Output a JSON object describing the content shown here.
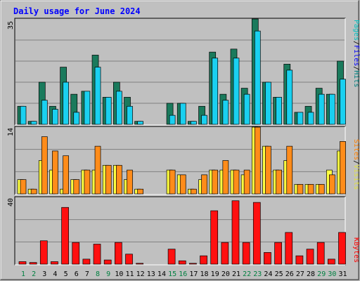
{
  "title": "Daily usage for June 2024",
  "colors": {
    "hits": "#1a7a5c",
    "files": "#1ad0f0",
    "sites": "#ffff40",
    "visits": "#ff8c1a",
    "kbytes": "#ff1010",
    "weekday_label": "#000000",
    "weekend_label": "#008040",
    "hits_label": "#008080",
    "files_label": "#0000ff",
    "pages_label": "#00c0c0",
    "visits_label": "#e0e040",
    "sites_label": "#ff8000",
    "kbytes_label": "#ff0000"
  },
  "right_labels": {
    "top": [
      "Pages",
      "Files",
      "Hits"
    ],
    "top_separator": "/",
    "middle": [
      "Sites",
      "Visits"
    ],
    "middle_separator": "/",
    "bottom": "KBytes"
  },
  "chart_data": {
    "type": "bar",
    "days": [
      "1",
      "2",
      "3",
      "4",
      "5",
      "6",
      "7",
      "8",
      "9",
      "10",
      "11",
      "12",
      "13",
      "14",
      "15",
      "16",
      "17",
      "18",
      "19",
      "20",
      "21",
      "22",
      "23",
      "24",
      "25",
      "26",
      "27",
      "28",
      "29",
      "30",
      "31"
    ],
    "weekend_days": [
      1,
      2,
      8,
      9,
      15,
      16,
      22,
      23,
      29,
      30
    ],
    "panels": [
      {
        "name": "hits-files-pages",
        "ymax_label": "35",
        "ylim": [
          0,
          35
        ],
        "series": [
          {
            "name": "Hits",
            "values": [
              6,
              1,
              14,
              6,
              19,
              10,
              11,
              23,
              9,
              14,
              9,
              1,
              0,
              0,
              7,
              7,
              1,
              6,
              24,
              10,
              25,
              12,
              35,
              14,
              9,
              20,
              4,
              6,
              12,
              10,
              21
            ]
          },
          {
            "name": "Files",
            "values": [
              6,
              1,
              8,
              5,
              14,
              4,
              11,
              19,
              9,
              11,
              6,
              1,
              0,
              0,
              3,
              7,
              1,
              3,
              22,
              8,
              22,
              10,
              31,
              14,
              9,
              18,
              4,
              4,
              10,
              10,
              15
            ]
          },
          {
            "name": "Pages",
            "values": [
              6,
              1,
              8,
              5,
              14,
              4,
              11,
              19,
              9,
              11,
              6,
              1,
              0,
              0,
              3,
              7,
              1,
              3,
              22,
              8,
              22,
              10,
              31,
              14,
              9,
              18,
              4,
              4,
              10,
              10,
              15
            ]
          }
        ]
      },
      {
        "name": "visits-sites",
        "ymax_label": "14",
        "ylim": [
          0,
          14
        ],
        "series": [
          {
            "name": "Visits",
            "values": [
              3,
              1,
              12,
              9,
              8,
              3,
              5,
              10,
              6,
              6,
              5,
              1,
              0,
              0,
              5,
              4,
              1,
              4,
              5,
              7,
              5,
              5,
              14,
              10,
              5,
              10,
              2,
              2,
              2,
              4,
              11
            ]
          },
          {
            "name": "Sites",
            "values": [
              3,
              1,
              7,
              5,
              1,
              3,
              5,
              5,
              6,
              6,
              3,
              1,
              0,
              0,
              5,
              4,
              1,
              3,
              5,
              5,
              5,
              4,
              14,
              10,
              5,
              7,
              2,
              2,
              2,
              5,
              9
            ]
          }
        ]
      },
      {
        "name": "kbytes",
        "ymax_label": "40",
        "ylim": [
          0,
          40
        ],
        "series": [
          {
            "name": "KBytes",
            "values": [
              1.5,
              1,
              14,
              1.5,
              34,
              13,
              3,
              12,
              2.5,
              13,
              6,
              0.5,
              0,
              0,
              9,
              2,
              0.5,
              5,
              32,
              13,
              38,
              13,
              37,
              7,
              13,
              19,
              5,
              9,
              13,
              3,
              19
            ]
          }
        ]
      }
    ]
  }
}
